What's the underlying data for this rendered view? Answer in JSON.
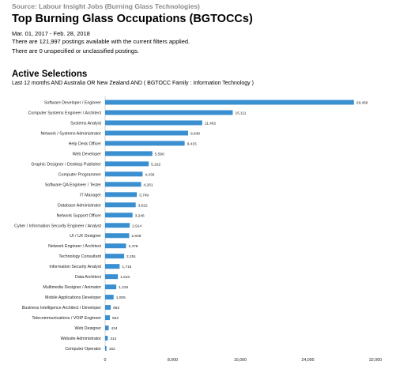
{
  "header": {
    "source": "Source: Labour Insight Jobs (Burning Glass Technologies)",
    "title": "Top Burning Glass Occupations (BGTOCCs)",
    "date_range": "Mar.  01, 2017  - Feb.  28, 2018",
    "postings_note": "There are 121,997 postings available with the current filters applied.",
    "unclassified_note": "There are 0 unspecified or unclassified postings."
  },
  "selections": {
    "title": "Active Selections",
    "filter_text": "Last 12 months AND Australia OR New Zealand AND ( BGTOCC Family : Information Technology )"
  },
  "colors": {
    "bar": "#3a8fd1",
    "axis": "#c8c8c8",
    "text": "#222222"
  },
  "chart_data": {
    "type": "bar",
    "orientation": "horizontal",
    "categories": [
      "Software Developer / Engineer",
      "Computer Systems Engineer / Architect",
      "Systems Analyst",
      "Network / Systems Administrator",
      "Help Desk Officer",
      "Web Developer",
      "Graphic Designer / Desktop Publisher",
      "Computer Programmer",
      "Software QA Engineer / Tester",
      "IT Manager",
      "Database Administrator",
      "Network Support Officer",
      "Cyber / Information Security Engineer / Analyst",
      "UI / UX Designer",
      "Network Engineer / Architect",
      "Technology Consultant",
      "Information Security Analyst",
      "Data Architect",
      "Multimedia Designer / Animator",
      "Mobile Applications Developer",
      "Business Intelligence Architect / Developer",
      "Telecommunications / VOIP Engineer",
      "Web Designer",
      "Website Administrator",
      "Computer Operator"
    ],
    "values": [
      29456,
      15111,
      11492,
      9830,
      9415,
      5590,
      5162,
      4436,
      4261,
      3749,
      3622,
      3246,
      2914,
      2846,
      2478,
      2251,
      1716,
      1510,
      1319,
      1005,
      663,
      562,
      424,
      314,
      162
    ],
    "value_labels": [
      "29,456",
      "15,111",
      "11,492",
      "9,830",
      "9,415",
      "5,590",
      "5,162",
      "4,436",
      "4,261",
      "3,749",
      "3,622",
      "3,246",
      "2,914",
      "2,846",
      "2,478",
      "2,251",
      "1,716",
      "1,510",
      "1,319",
      "1,005",
      "663",
      "562",
      "424",
      "314",
      "162"
    ],
    "xlim": [
      0,
      32000
    ],
    "x_ticks": [
      0,
      8000,
      16000,
      24000,
      32000
    ],
    "x_tick_labels": [
      "0",
      "8,000",
      "16,000",
      "24,000",
      "32,000"
    ],
    "grid": false,
    "legend": "none"
  }
}
